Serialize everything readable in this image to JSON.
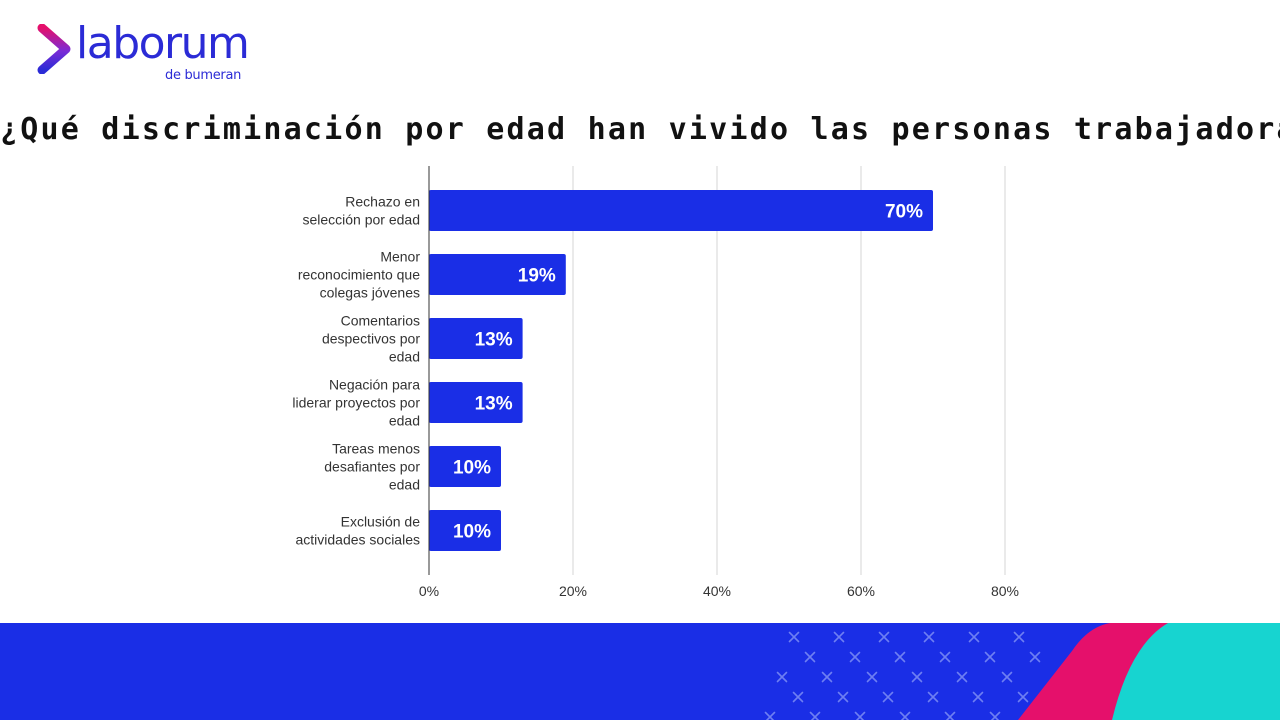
{
  "brand": {
    "name": "laborum",
    "tagline": "de bumeran",
    "colors": {
      "primary": "#2b2bd6",
      "accent": "#e5106b",
      "teal": "#17d4d0",
      "bar": "#1a2ee6"
    }
  },
  "title": "¿Qué discriminación por edad han vivido las personas trabajadoras?",
  "chart_data": {
    "type": "bar",
    "orientation": "horizontal",
    "title": "¿Qué discriminación por edad han vivido las personas trabajadoras?",
    "categories": [
      [
        "Rechazo en",
        "selección por edad"
      ],
      [
        "Menor",
        "reconocimiento que",
        "colegas jóvenes"
      ],
      [
        "Comentarios",
        "despectivos por",
        "edad"
      ],
      [
        "Negación para",
        "liderar proyectos por",
        "edad"
      ],
      [
        "Tareas menos",
        "desafiantes por",
        "edad"
      ],
      [
        "Exclusión de",
        "actividades sociales"
      ]
    ],
    "values": [
      70,
      19,
      13,
      13,
      10,
      10
    ],
    "data_labels": [
      "70%",
      "19%",
      "13%",
      "13%",
      "10%",
      "10%"
    ],
    "xlim": [
      0,
      80
    ],
    "xticks": [
      0,
      20,
      40,
      60,
      80
    ],
    "xtick_labels": [
      "0%",
      "20%",
      "40%",
      "60%",
      "80%"
    ],
    "grid": true,
    "xlabel": "",
    "ylabel": ""
  }
}
